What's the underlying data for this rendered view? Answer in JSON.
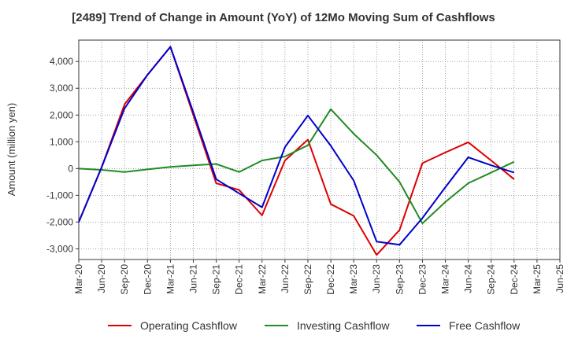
{
  "chart_data": {
    "type": "line",
    "title": "[2489]  Trend of Change in Amount (YoY) of 12Mo Moving Sum of Cashflows",
    "xlabel": "",
    "ylabel": "Amount (million yen)",
    "ylim": [
      -3400,
      4800
    ],
    "yticks": [
      4000,
      3000,
      2000,
      1000,
      0,
      -1000,
      -2000,
      -3000
    ],
    "ytick_labels": [
      "4,000",
      "3,000",
      "2,000",
      "1,000",
      "0",
      "-1,000",
      "-2,000",
      "-3,000"
    ],
    "categories": [
      "Mar-20",
      "Jun-20",
      "Sep-20",
      "Dec-20",
      "Mar-21",
      "Jun-21",
      "Sep-21",
      "Dec-21",
      "Mar-22",
      "Jun-22",
      "Sep-22",
      "Dec-22",
      "Mar-23",
      "Jun-23",
      "Sep-23",
      "Dec-23",
      "Mar-24",
      "Jun-24",
      "Sep-24",
      "Dec-24",
      "Mar-25",
      "Jun-25"
    ],
    "grid": true,
    "legend_position": "bottom",
    "series": [
      {
        "name": "Operating Cashflow",
        "color": "#dd0000",
        "values": [
          -2000,
          50,
          2400,
          3500,
          4550,
          2000,
          -550,
          -800,
          -1750,
          300,
          1080,
          -1330,
          -1770,
          -3230,
          -2300,
          200,
          600,
          980,
          300,
          -400,
          null,
          null
        ]
      },
      {
        "name": "Investing Cashflow",
        "color": "#228b22",
        "values": [
          0,
          -50,
          -130,
          -30,
          60,
          120,
          170,
          -130,
          300,
          450,
          870,
          2220,
          1300,
          500,
          -500,
          -2050,
          -1250,
          -550,
          -150,
          250,
          null,
          null
        ]
      },
      {
        "name": "Free Cashflow",
        "color": "#0000cc",
        "values": [
          -2000,
          50,
          2250,
          3500,
          4550,
          2100,
          -400,
          -930,
          -1450,
          800,
          1980,
          850,
          -450,
          -2730,
          -2850,
          -1850,
          -700,
          420,
          120,
          -150,
          null,
          null
        ]
      }
    ]
  }
}
